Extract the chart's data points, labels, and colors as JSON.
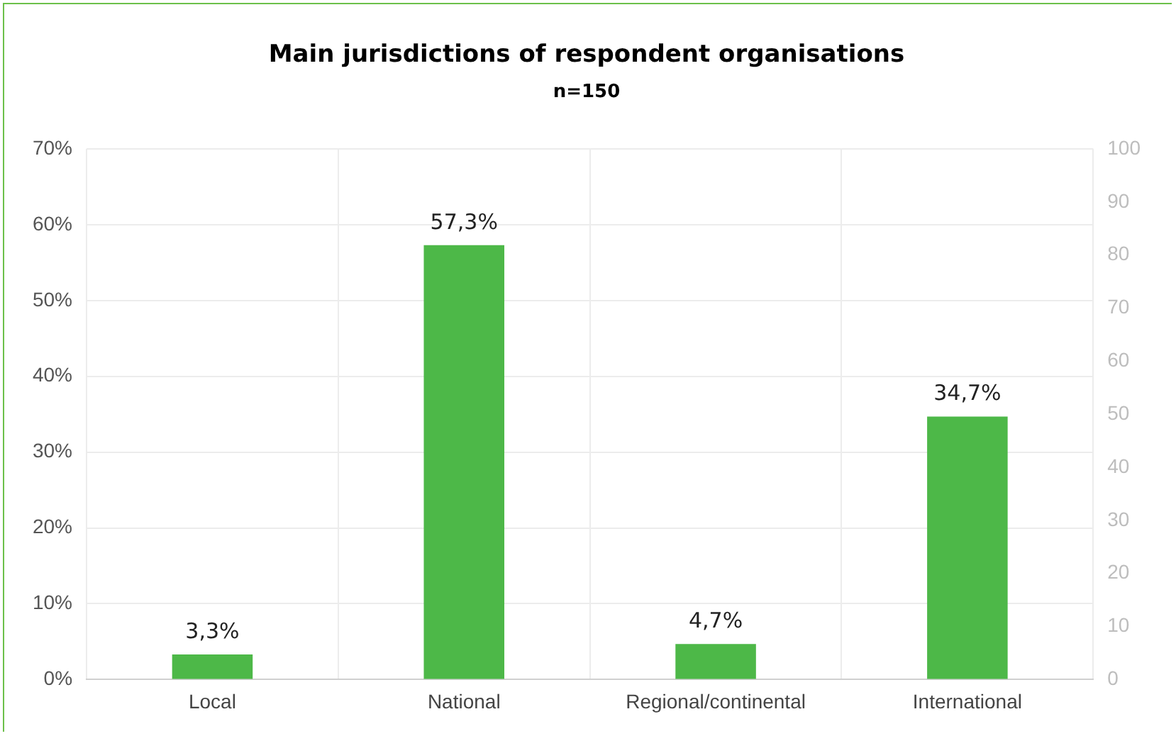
{
  "chart_data": {
    "type": "bar",
    "title": "Main jurisdictions of respondent organisations",
    "subtitle": "n=150",
    "categories": [
      "Local",
      "National",
      "Regional/continental",
      "International"
    ],
    "values": [
      3.3,
      57.3,
      4.7,
      34.7
    ],
    "value_labels": [
      "3,3%",
      "57,3%",
      "4,7%",
      "34,7%"
    ],
    "color": "#4db848",
    "ylim": [
      0,
      70
    ],
    "yticks": [
      {
        "value": 0,
        "label": "0%"
      },
      {
        "value": 10,
        "label": "10%"
      },
      {
        "value": 20,
        "label": "20%"
      },
      {
        "value": 30,
        "label": "30%"
      },
      {
        "value": 40,
        "label": "40%"
      },
      {
        "value": 50,
        "label": "50%"
      },
      {
        "value": 60,
        "label": "60%"
      },
      {
        "value": 70,
        "label": "70%"
      }
    ],
    "y2lim": [
      0,
      100
    ],
    "y2ticks": [
      0,
      10,
      20,
      30,
      40,
      50,
      60,
      70,
      80,
      90,
      100
    ],
    "grid": true
  }
}
